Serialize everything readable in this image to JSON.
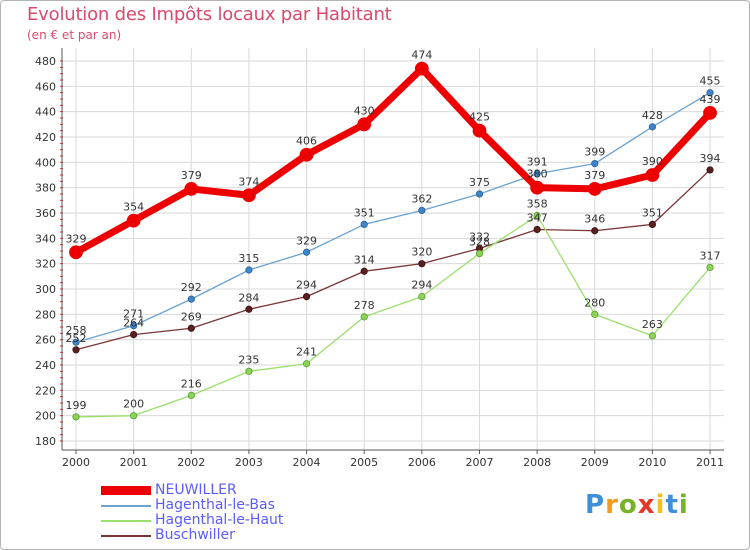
{
  "chart_data": {
    "type": "line",
    "title": "Evolution des Impôts locaux par Habitant",
    "subtitle": "(en € et par an)",
    "xlabel": "",
    "ylabel": "",
    "x": [
      "2000",
      "2001",
      "2002",
      "2003",
      "2004",
      "2005",
      "2006",
      "2007",
      "2008",
      "2009",
      "2010",
      "2011"
    ],
    "ylim": [
      180,
      480
    ],
    "yticks": [
      180,
      200,
      220,
      240,
      260,
      280,
      300,
      320,
      340,
      360,
      380,
      400,
      420,
      440,
      460,
      480
    ],
    "grid": true,
    "legend_position": "bottom-left",
    "series": [
      {
        "name": "NEUWILLER",
        "color": "#ee0000",
        "values": [
          329,
          354,
          379,
          374,
          406,
          430,
          474,
          425,
          380,
          379,
          390,
          439
        ]
      },
      {
        "name": "Hagenthal-le-Bas",
        "color": "#6aa2d2",
        "values": [
          258,
          271,
          292,
          315,
          329,
          351,
          362,
          375,
          391,
          399,
          428,
          455
        ]
      },
      {
        "name": "Hagenthal-le-Haut",
        "color": "#99e06a",
        "values": [
          199,
          200,
          216,
          235,
          241,
          278,
          294,
          328,
          358,
          280,
          263,
          317
        ]
      },
      {
        "name": "Buschwiller",
        "color": "#7a3535",
        "values": [
          252,
          264,
          269,
          284,
          294,
          314,
          320,
          332,
          347,
          346,
          351,
          394
        ]
      }
    ]
  },
  "logo": {
    "letters": [
      "P",
      "r",
      "o",
      "x",
      "i",
      "t",
      "i"
    ],
    "colors": [
      "#3e8fd8",
      "#f29b1d",
      "#77b32a",
      "#e8352b",
      "#f2c11d",
      "#3e8fd8",
      "#77b32a"
    ]
  }
}
